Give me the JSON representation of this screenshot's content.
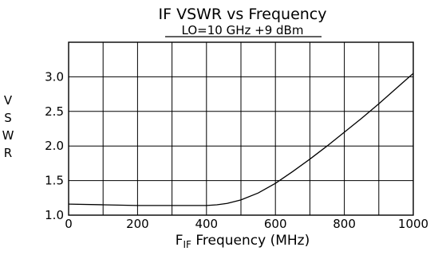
{
  "chart_data": {
    "type": "line",
    "title": "IF VSWR vs Frequency",
    "subtitle": "LO=10 GHz +9 dBm",
    "xlabel_main": "F",
    "xlabel_sub": "IF",
    "xlabel_rest": " Frequency (MHz)",
    "ylabel_letters": [
      "V",
      "S",
      "W",
      "R"
    ],
    "xlim": [
      0,
      1000
    ],
    "ylim": [
      1.0,
      3.5
    ],
    "x_ticks": [
      0,
      200,
      400,
      600,
      800,
      1000
    ],
    "x_tick_labels": [
      "0",
      "200",
      "400",
      "600",
      "800",
      "1000"
    ],
    "y_ticks": [
      1.0,
      1.5,
      2.0,
      2.5,
      3.0
    ],
    "y_tick_labels": [
      "1.0",
      "1.5",
      "2.0",
      "2.5",
      "3.0"
    ],
    "grid": true,
    "series": [
      {
        "x": [
          0,
          100,
          200,
          300,
          400,
          430,
          460,
          500,
          550,
          600,
          650,
          700,
          750,
          800,
          850,
          900,
          950,
          1000
        ],
        "y": [
          1.16,
          1.15,
          1.14,
          1.14,
          1.14,
          1.15,
          1.17,
          1.22,
          1.32,
          1.46,
          1.63,
          1.81,
          2.0,
          2.2,
          2.4,
          2.61,
          2.83,
          3.05
        ]
      }
    ]
  }
}
